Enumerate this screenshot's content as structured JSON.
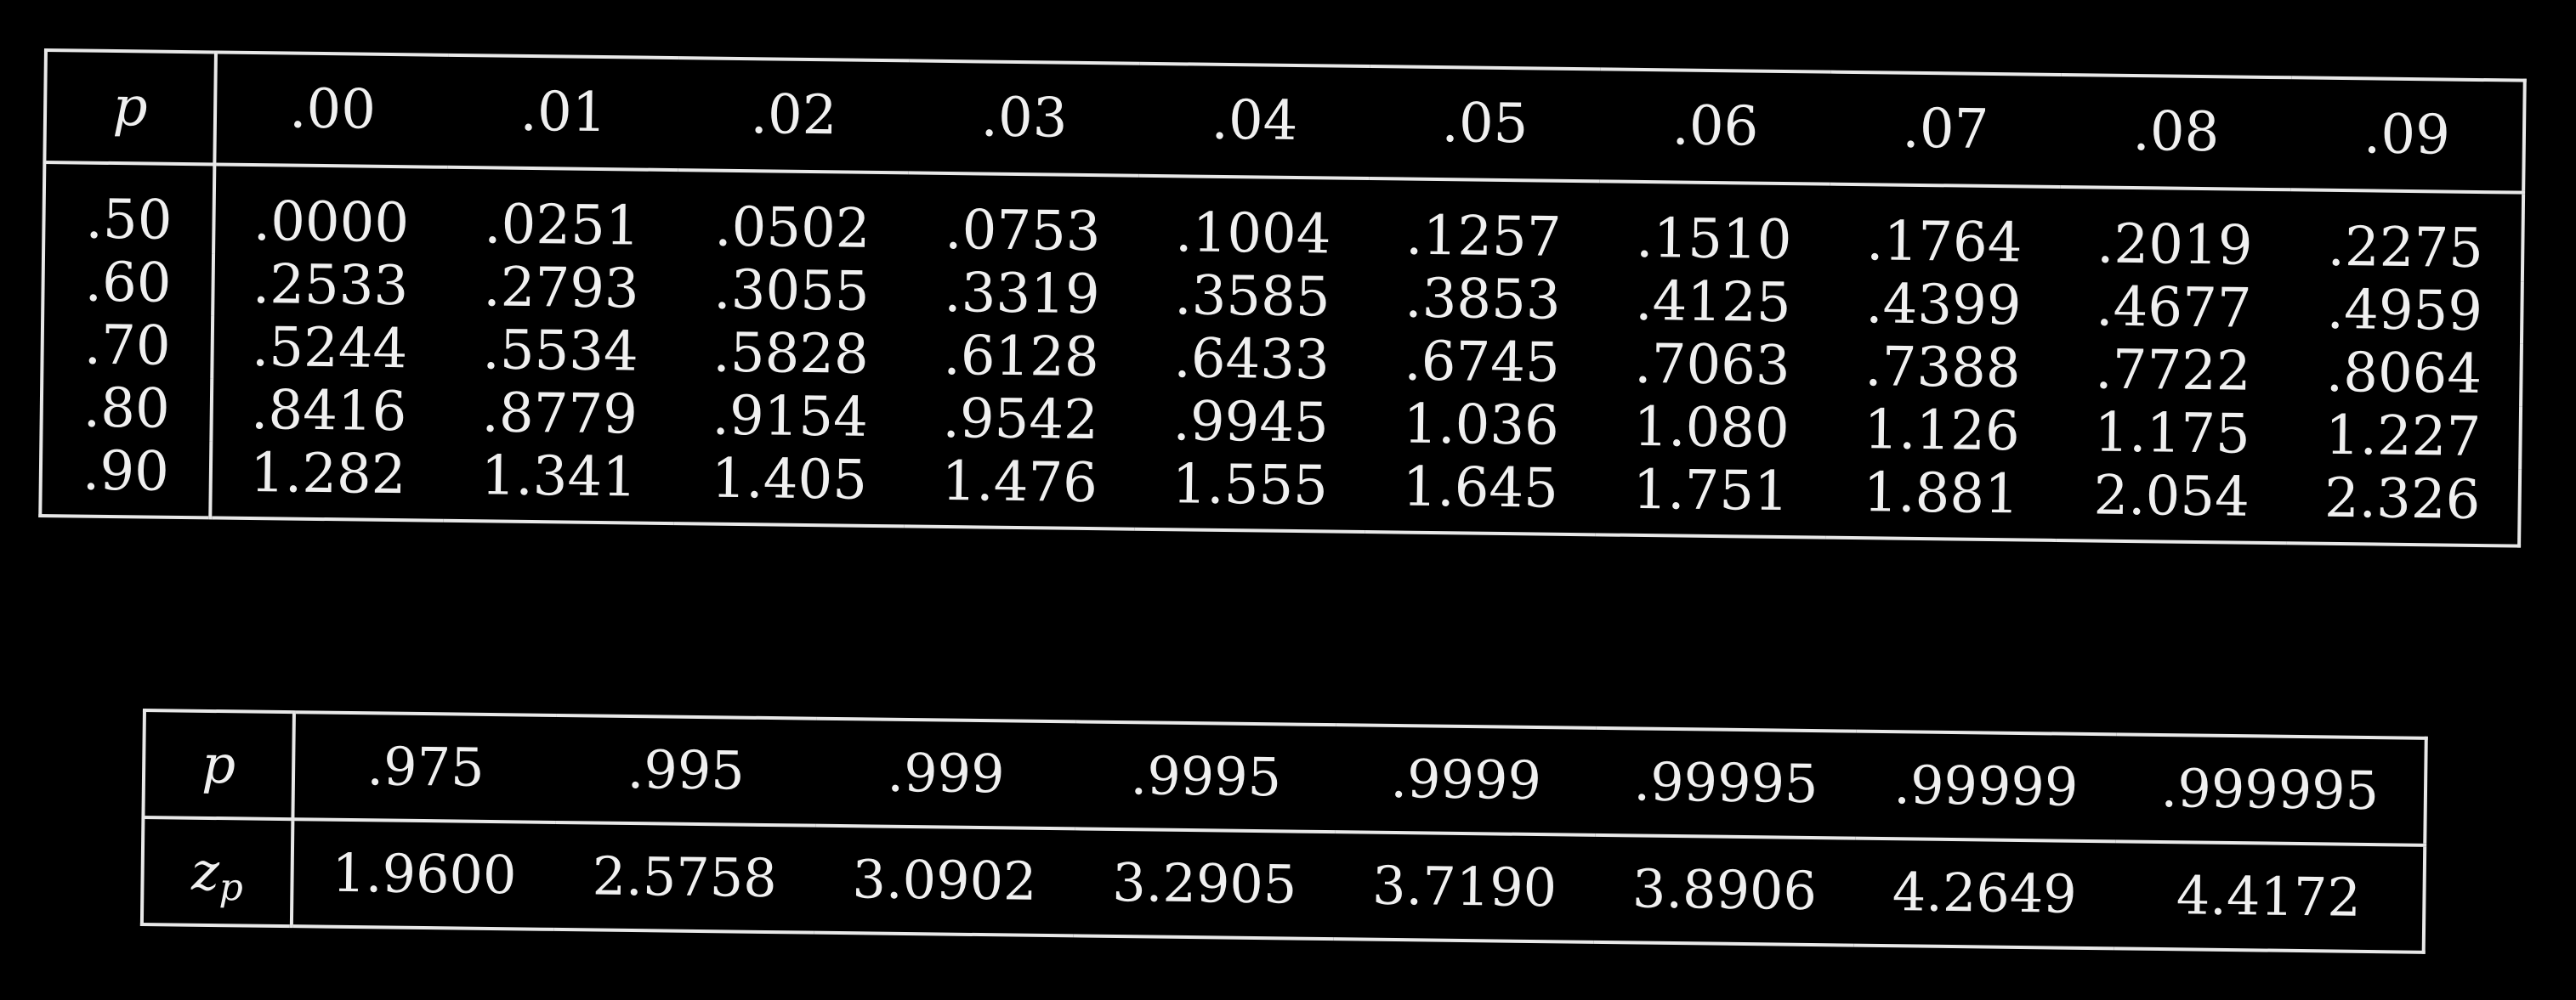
{
  "quantile_table": {
    "corner_label": "p",
    "column_headers": [
      ".00",
      ".01",
      ".02",
      ".03",
      ".04",
      ".05",
      ".06",
      ".07",
      ".08",
      ".09"
    ],
    "rows": [
      {
        "p": ".50",
        "values": [
          ".0000",
          ".0251",
          ".0502",
          ".0753",
          ".1004",
          ".1257",
          ".1510",
          ".1764",
          ".2019",
          ".2275"
        ]
      },
      {
        "p": ".60",
        "values": [
          ".2533",
          ".2793",
          ".3055",
          ".3319",
          ".3585",
          ".3853",
          ".4125",
          ".4399",
          ".4677",
          ".4959"
        ]
      },
      {
        "p": ".70",
        "values": [
          ".5244",
          ".5534",
          ".5828",
          ".6128",
          ".6433",
          ".6745",
          ".7063",
          ".7388",
          ".7722",
          ".8064"
        ]
      },
      {
        "p": ".80",
        "values": [
          ".8416",
          ".8779",
          ".9154",
          ".9542",
          ".9945",
          "1.036",
          "1.080",
          "1.126",
          "1.175",
          "1.227"
        ]
      },
      {
        "p": ".90",
        "values": [
          "1.282",
          "1.341",
          "1.405",
          "1.476",
          "1.555",
          "1.645",
          "1.751",
          "1.881",
          "2.054",
          "2.326"
        ]
      }
    ]
  },
  "tail_table": {
    "p_label": "p",
    "z_label_main": "z",
    "z_label_sub": "p",
    "p_values": [
      ".975",
      ".995",
      ".999",
      ".9995",
      ".9999",
      ".99995",
      ".99999",
      ".999995"
    ],
    "z_values": [
      "1.9600",
      "2.5758",
      "3.0902",
      "3.2905",
      "3.7190",
      "3.8906",
      "4.2649",
      "4.4172"
    ]
  }
}
